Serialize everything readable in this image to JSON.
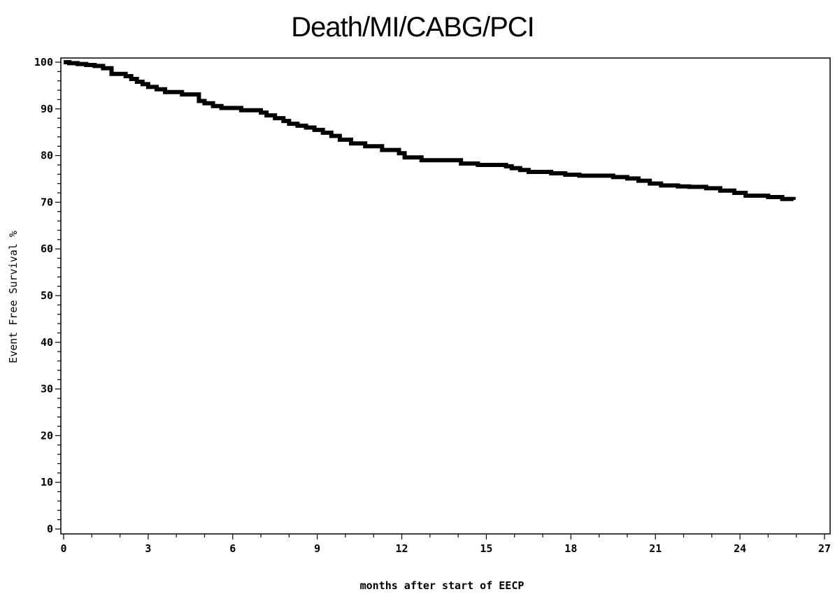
{
  "chart_data": {
    "type": "line",
    "title": "Death/MI/CABG/PCI",
    "xlabel": "months after start of EECP",
    "ylabel": "Event Free Survival %",
    "xlim": [
      0,
      27
    ],
    "ylim": [
      0,
      100
    ],
    "xticks": [
      "0",
      "3",
      "6",
      "9",
      "12",
      "15",
      "18",
      "21",
      "24",
      "27"
    ],
    "yticks": [
      "0",
      "10",
      "20",
      "30",
      "40",
      "50",
      "60",
      "70",
      "80",
      "90",
      "100"
    ],
    "grid": false,
    "legend": "none",
    "series": [
      {
        "color": "#000000",
        "step": true,
        "x": [
          0,
          0.2,
          0.5,
          0.8,
          1.1,
          1.4,
          1.7,
          2.2,
          2.4,
          2.6,
          2.8,
          3.0,
          3.3,
          3.6,
          4.2,
          4.8,
          5.0,
          5.3,
          5.6,
          6.3,
          7.0,
          7.2,
          7.5,
          7.8,
          8.0,
          8.3,
          8.6,
          8.9,
          9.2,
          9.5,
          9.8,
          10.2,
          10.7,
          11.3,
          11.9,
          12.1,
          12.7,
          14.1,
          14.7,
          15.7,
          15.9,
          16.2,
          16.5,
          17.3,
          17.8,
          18.3,
          19.5,
          20.0,
          20.4,
          20.8,
          21.2,
          21.8,
          22.2,
          22.8,
          23.3,
          23.8,
          24.2,
          25.0,
          25.5,
          25.9
        ],
        "y": [
          100,
          99.8,
          99.6,
          99.4,
          99.2,
          98.7,
          97.5,
          97.0,
          96.4,
          95.8,
          95.3,
          94.7,
          94.2,
          93.6,
          93.1,
          91.7,
          91.2,
          90.6,
          90.2,
          89.7,
          89.2,
          88.6,
          88.0,
          87.4,
          86.8,
          86.4,
          86.0,
          85.5,
          84.9,
          84.2,
          83.4,
          82.6,
          82.0,
          81.2,
          80.5,
          79.6,
          79.0,
          78.3,
          78.0,
          77.7,
          77.3,
          76.9,
          76.5,
          76.2,
          75.9,
          75.7,
          75.4,
          75.1,
          74.6,
          74.0,
          73.6,
          73.4,
          73.3,
          73.0,
          72.5,
          72.0,
          71.4,
          71.1,
          70.7,
          70.5
        ]
      }
    ]
  }
}
